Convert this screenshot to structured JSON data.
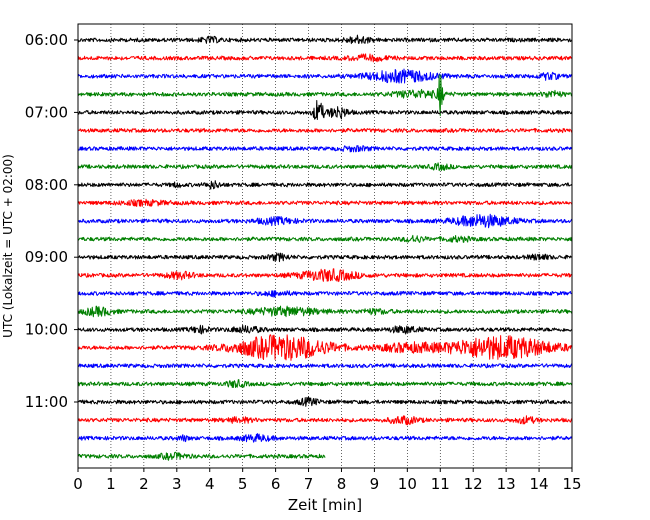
{
  "chart_data": {
    "type": "line",
    "title": "",
    "xlabel": "Zeit  [min]",
    "ylabel": "UTC (Lokalzeit = UTC + 02:00)",
    "xlim": [
      0,
      15
    ],
    "x_ticks": [
      0,
      1,
      2,
      3,
      4,
      5,
      6,
      7,
      8,
      9,
      10,
      11,
      12,
      13,
      14,
      15
    ],
    "y_ticks": [
      "06:00",
      "07:00",
      "08:00",
      "09:00",
      "10:00",
      "11:00"
    ],
    "grid": "vertical dotted",
    "trace_interval_minutes": 15,
    "traces_per_hour": 4,
    "color_cycle": [
      "#000000",
      "#ff0000",
      "#0000ff",
      "#008000"
    ],
    "series": [
      {
        "start": "06:00",
        "end_minute": 15,
        "color": "#000000",
        "events": [
          {
            "t": 4.0,
            "amp": 0.25,
            "w": 0.2
          },
          {
            "t": 8.5,
            "amp": 0.35,
            "w": 0.25
          }
        ]
      },
      {
        "start": "06:15",
        "end_minute": 15,
        "color": "#ff0000",
        "events": [
          {
            "t": 8.8,
            "amp": 0.25,
            "w": 0.4
          }
        ]
      },
      {
        "start": "06:30",
        "end_minute": 15,
        "color": "#0000ff",
        "events": [
          {
            "t": 9.8,
            "amp": 0.6,
            "w": 0.7
          },
          {
            "t": 14.3,
            "amp": 0.3,
            "w": 0.2
          }
        ]
      },
      {
        "start": "06:45",
        "end_minute": 15,
        "color": "#008000",
        "events": [
          {
            "t": 10.3,
            "amp": 0.35,
            "w": 0.5
          },
          {
            "t": 11.0,
            "amp": 2.4,
            "w": 0.05
          },
          {
            "t": 14.4,
            "amp": 0.3,
            "w": 0.2
          }
        ]
      },
      {
        "start": "07:00",
        "end_minute": 15,
        "color": "#000000",
        "events": [
          {
            "t": 7.3,
            "amp": 1.3,
            "w": 0.1
          },
          {
            "t": 7.9,
            "amp": 0.6,
            "w": 0.2
          }
        ]
      },
      {
        "start": "07:15",
        "end_minute": 15,
        "color": "#ff0000",
        "events": []
      },
      {
        "start": "07:30",
        "end_minute": 15,
        "color": "#0000ff",
        "events": [
          {
            "t": 8.4,
            "amp": 0.2,
            "w": 0.3
          }
        ]
      },
      {
        "start": "07:45",
        "end_minute": 15,
        "color": "#008000",
        "events": [
          {
            "t": 11.0,
            "amp": 0.25,
            "w": 0.2
          }
        ]
      },
      {
        "start": "08:00",
        "end_minute": 15,
        "color": "#000000",
        "events": [
          {
            "t": 4.1,
            "amp": 0.35,
            "w": 0.15
          },
          {
            "t": 3.0,
            "amp": 0.2,
            "w": 0.1
          }
        ]
      },
      {
        "start": "08:15",
        "end_minute": 15,
        "color": "#ff0000",
        "events": [
          {
            "t": 2.0,
            "amp": 0.2,
            "w": 0.5
          }
        ]
      },
      {
        "start": "08:30",
        "end_minute": 15,
        "color": "#0000ff",
        "events": [
          {
            "t": 6.0,
            "amp": 0.3,
            "w": 0.4
          },
          {
            "t": 12.3,
            "amp": 0.6,
            "w": 0.6
          }
        ]
      },
      {
        "start": "08:45",
        "end_minute": 15,
        "color": "#008000",
        "events": [
          {
            "t": 10.2,
            "amp": 0.3,
            "w": 0.2
          },
          {
            "t": 11.5,
            "amp": 0.2,
            "w": 0.3
          }
        ]
      },
      {
        "start": "09:00",
        "end_minute": 15,
        "color": "#000000",
        "events": [
          {
            "t": 6.1,
            "amp": 0.3,
            "w": 0.2
          },
          {
            "t": 14.0,
            "amp": 0.25,
            "w": 0.2
          }
        ]
      },
      {
        "start": "09:15",
        "end_minute": 15,
        "color": "#ff0000",
        "events": [
          {
            "t": 3.1,
            "amp": 0.3,
            "w": 0.3
          },
          {
            "t": 7.6,
            "amp": 0.55,
            "w": 0.6
          }
        ]
      },
      {
        "start": "09:30",
        "end_minute": 15,
        "color": "#0000ff",
        "events": [
          {
            "t": 6.0,
            "amp": 0.2,
            "w": 0.3
          }
        ]
      },
      {
        "start": "09:45",
        "end_minute": 15,
        "color": "#008000",
        "events": [
          {
            "t": 0.6,
            "amp": 0.4,
            "w": 0.3
          },
          {
            "t": 6.3,
            "amp": 0.4,
            "w": 0.7
          },
          {
            "t": 9.0,
            "amp": 0.2,
            "w": 0.3
          }
        ]
      },
      {
        "start": "10:00",
        "end_minute": 15,
        "color": "#000000",
        "events": [
          {
            "t": 3.7,
            "amp": 0.3,
            "w": 0.2
          },
          {
            "t": 5.1,
            "amp": 0.3,
            "w": 0.3
          },
          {
            "t": 9.9,
            "amp": 0.3,
            "w": 0.3
          }
        ]
      },
      {
        "start": "10:15",
        "end_minute": 15,
        "color": "#ff0000",
        "events": [
          {
            "t": 6.2,
            "amp": 1.3,
            "w": 1.0
          },
          {
            "t": 10.0,
            "amp": 0.4,
            "w": 0.6
          },
          {
            "t": 12.8,
            "amp": 1.2,
            "w": 1.1
          }
        ]
      },
      {
        "start": "10:30",
        "end_minute": 15,
        "color": "#0000ff",
        "events": []
      },
      {
        "start": "10:45",
        "end_minute": 15,
        "color": "#008000",
        "events": [
          {
            "t": 4.8,
            "amp": 0.3,
            "w": 0.2
          }
        ]
      },
      {
        "start": "11:00",
        "end_minute": 15,
        "color": "#000000",
        "events": [
          {
            "t": 7.0,
            "amp": 0.35,
            "w": 0.2
          }
        ]
      },
      {
        "start": "11:15",
        "end_minute": 15,
        "color": "#ff0000",
        "events": [
          {
            "t": 4.9,
            "amp": 0.2,
            "w": 0.3
          },
          {
            "t": 9.9,
            "amp": 0.35,
            "w": 0.3
          },
          {
            "t": 13.6,
            "amp": 0.3,
            "w": 0.2
          }
        ]
      },
      {
        "start": "11:30",
        "end_minute": 15,
        "color": "#0000ff",
        "events": [
          {
            "t": 3.2,
            "amp": 0.25,
            "w": 0.1
          },
          {
            "t": 5.4,
            "amp": 0.3,
            "w": 0.3
          }
        ]
      },
      {
        "start": "11:45",
        "end_minute": 7.5,
        "color": "#008000",
        "events": [
          {
            "t": 2.9,
            "amp": 0.25,
            "w": 0.3
          }
        ]
      }
    ]
  }
}
